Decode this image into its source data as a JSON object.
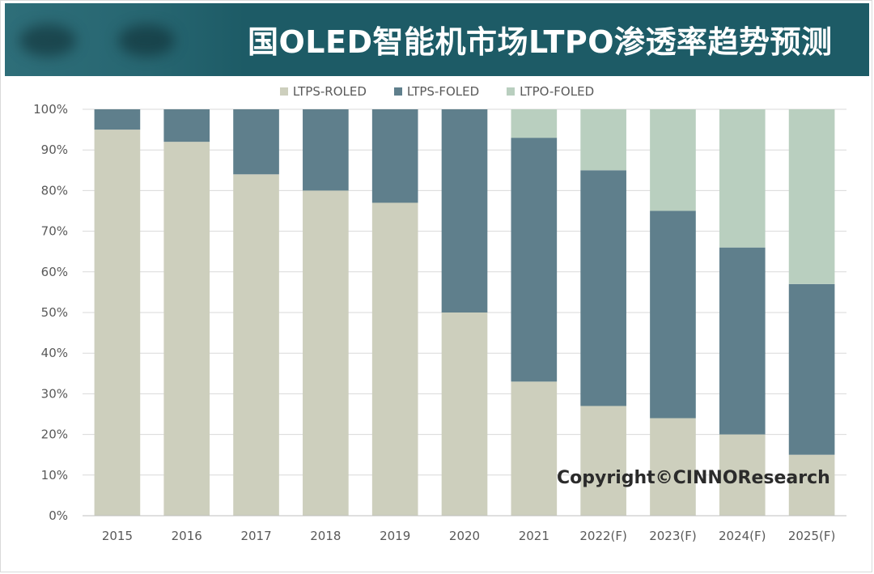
{
  "title": "国OLED智能机市场LTPO渗透率趋势预测",
  "watermark": "Copyright©CINNOResearch",
  "colors": {
    "header_bg": "#1d5b66",
    "ltps_roled": "#cdcfbd",
    "ltps_foled": "#5f7f8c",
    "ltpo_foled": "#b9cfbf",
    "gridline": "#d9d9d9",
    "axis_text": "#595959"
  },
  "chart_data": {
    "type": "bar",
    "stacked": true,
    "categories": [
      "2015",
      "2016",
      "2017",
      "2018",
      "2019",
      "2020",
      "2021",
      "2022(F)",
      "2023(F)",
      "2024(F)",
      "2025(F)"
    ],
    "series": [
      {
        "name": "LTPS-ROLED",
        "values": [
          95,
          92,
          84,
          80,
          77,
          50,
          33,
          27,
          24,
          20,
          15
        ]
      },
      {
        "name": "LTPS-FOLED",
        "values": [
          5,
          8,
          16,
          20,
          23,
          50,
          60,
          58,
          51,
          46,
          42
        ]
      },
      {
        "name": "LTPO-FOLED",
        "values": [
          0,
          0,
          0,
          0,
          0,
          0,
          7,
          15,
          25,
          34,
          43
        ]
      }
    ],
    "ylim": [
      0,
      100
    ],
    "yticks": [
      "0%",
      "10%",
      "20%",
      "30%",
      "40%",
      "50%",
      "60%",
      "70%",
      "80%",
      "90%",
      "100%"
    ],
    "grid": true,
    "legend_position": "top"
  }
}
